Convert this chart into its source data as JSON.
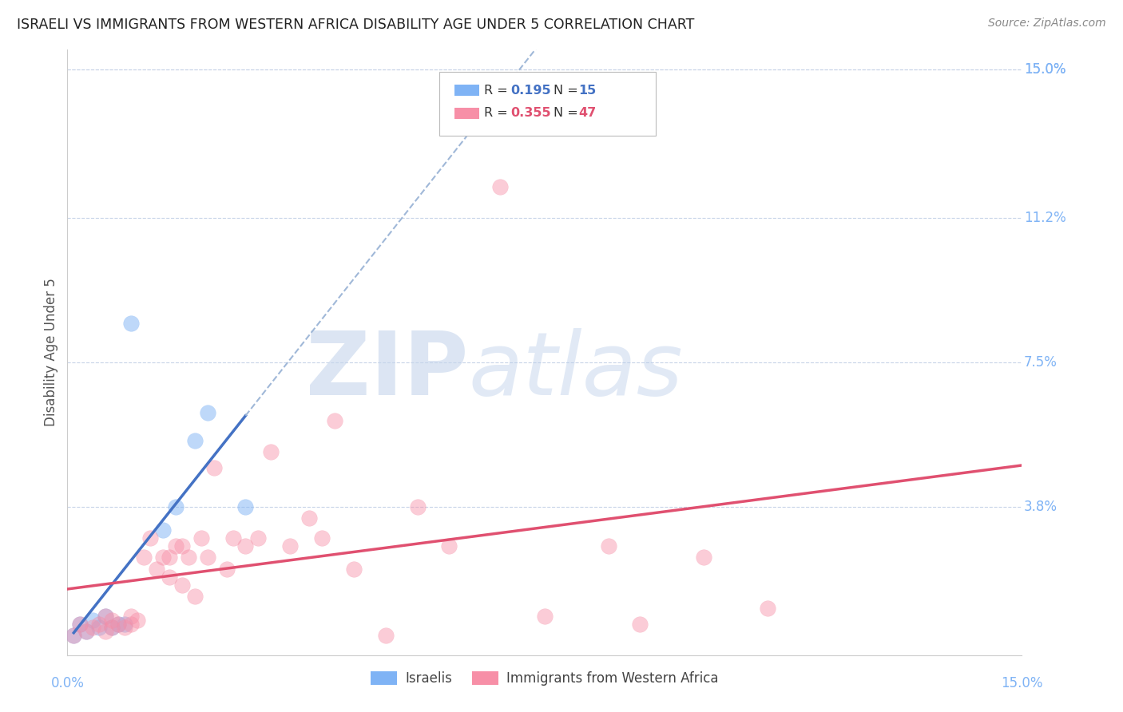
{
  "title": "ISRAELI VS IMMIGRANTS FROM WESTERN AFRICA DISABILITY AGE UNDER 5 CORRELATION CHART",
  "source": "Source: ZipAtlas.com",
  "ylabel": "Disability Age Under 5",
  "ytick_labels": [
    "15.0%",
    "11.2%",
    "7.5%",
    "3.8%"
  ],
  "ytick_values": [
    0.15,
    0.112,
    0.075,
    0.038
  ],
  "xlim": [
    0.0,
    0.15
  ],
  "ylim": [
    0.0,
    0.155
  ],
  "color_israeli": "#7fb3f5",
  "color_immigrants": "#f78fa7",
  "color_axis_label": "#7fb3f5",
  "color_line_israeli": "#4472c4",
  "color_line_immigrants": "#e05070",
  "color_line_dashed": "#a0b8d8",
  "israelis_x": [
    0.001,
    0.002,
    0.003,
    0.004,
    0.005,
    0.006,
    0.007,
    0.008,
    0.009,
    0.01,
    0.015,
    0.017,
    0.02,
    0.022,
    0.028
  ],
  "israelis_y": [
    0.005,
    0.008,
    0.006,
    0.009,
    0.007,
    0.01,
    0.007,
    0.008,
    0.008,
    0.085,
    0.032,
    0.038,
    0.055,
    0.062,
    0.038
  ],
  "immigrants_x": [
    0.001,
    0.002,
    0.003,
    0.004,
    0.005,
    0.006,
    0.006,
    0.007,
    0.007,
    0.008,
    0.009,
    0.01,
    0.01,
    0.011,
    0.012,
    0.013,
    0.014,
    0.015,
    0.016,
    0.016,
    0.017,
    0.018,
    0.018,
    0.019,
    0.02,
    0.021,
    0.022,
    0.023,
    0.025,
    0.026,
    0.028,
    0.03,
    0.032,
    0.035,
    0.038,
    0.04,
    0.042,
    0.045,
    0.05,
    0.055,
    0.06,
    0.068,
    0.075,
    0.085,
    0.09,
    0.1,
    0.11
  ],
  "immigrants_y": [
    0.005,
    0.008,
    0.006,
    0.007,
    0.008,
    0.006,
    0.01,
    0.007,
    0.009,
    0.008,
    0.007,
    0.01,
    0.008,
    0.009,
    0.025,
    0.03,
    0.022,
    0.025,
    0.02,
    0.025,
    0.028,
    0.018,
    0.028,
    0.025,
    0.015,
    0.03,
    0.025,
    0.048,
    0.022,
    0.03,
    0.028,
    0.03,
    0.052,
    0.028,
    0.035,
    0.03,
    0.06,
    0.022,
    0.005,
    0.038,
    0.028,
    0.12,
    0.01,
    0.028,
    0.008,
    0.025,
    0.012
  ],
  "background_color": "#ffffff",
  "grid_color": "#c8d4e8",
  "watermark_zip_color": "#c8d8ef",
  "watermark_atlas_color": "#b8cce8"
}
